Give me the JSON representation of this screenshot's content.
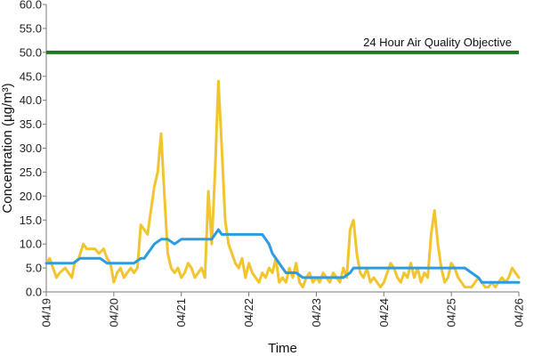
{
  "chart_data": {
    "type": "line",
    "xlabel": "Time",
    "ylabel": "Concentration (µg/m³)",
    "ylim": [
      0,
      60
    ],
    "ytick_labels": [
      "0.0",
      "5.0",
      "10.0",
      "15.0",
      "20.0",
      "25.0",
      "30.0",
      "35.0",
      "40.0",
      "45.0",
      "50.0",
      "55.0",
      "60.0"
    ],
    "ytick_values": [
      0,
      5,
      10,
      15,
      20,
      25,
      30,
      35,
      40,
      45,
      50,
      55,
      60
    ],
    "xlim": [
      0,
      7
    ],
    "xtick_labels": [
      "04/19",
      "04/20",
      "04/21",
      "04/22",
      "04/23",
      "04/24",
      "04/25",
      "04/26"
    ],
    "xtick_values": [
      0,
      1,
      2,
      3,
      4,
      5,
      6,
      7
    ],
    "grid": false,
    "reference_line": {
      "label": "24 Hour Air Quality Objective",
      "value": 50,
      "color": "#1a7a1a"
    },
    "series": [
      {
        "color": "#f2c52e",
        "x": [
          0.0,
          0.05,
          0.1,
          0.15,
          0.2,
          0.28,
          0.33,
          0.38,
          0.42,
          0.48,
          0.55,
          0.6,
          0.65,
          0.72,
          0.78,
          0.85,
          0.9,
          0.95,
          1.0,
          1.05,
          1.1,
          1.15,
          1.2,
          1.25,
          1.3,
          1.35,
          1.4,
          1.45,
          1.5,
          1.55,
          1.6,
          1.65,
          1.7,
          1.75,
          1.8,
          1.85,
          1.9,
          1.95,
          2.0,
          2.05,
          2.1,
          2.15,
          2.2,
          2.25,
          2.3,
          2.35,
          2.4,
          2.45,
          2.5,
          2.55,
          2.6,
          2.65,
          2.7,
          2.75,
          2.8,
          2.85,
          2.9,
          2.95,
          3.0,
          3.05,
          3.1,
          3.15,
          3.2,
          3.25,
          3.3,
          3.35,
          3.4,
          3.45,
          3.5,
          3.55,
          3.6,
          3.65,
          3.7,
          3.75,
          3.8,
          3.85,
          3.9,
          3.95,
          4.0,
          4.05,
          4.1,
          4.15,
          4.2,
          4.25,
          4.3,
          4.35,
          4.4,
          4.45,
          4.5,
          4.55,
          4.6,
          4.65,
          4.7,
          4.75,
          4.8,
          4.85,
          4.9,
          4.95,
          5.0,
          5.05,
          5.1,
          5.15,
          5.2,
          5.25,
          5.3,
          5.35,
          5.4,
          5.45,
          5.5,
          5.55,
          5.6,
          5.65,
          5.7,
          5.75,
          5.8,
          5.85,
          5.9,
          5.95,
          6.0,
          6.05,
          6.1,
          6.15,
          6.2,
          6.25,
          6.3,
          6.35,
          6.4,
          6.45,
          6.5,
          6.55,
          6.6,
          6.65,
          6.7,
          6.75,
          6.8,
          6.85,
          6.9,
          6.95,
          7.0
        ],
        "y": [
          6,
          7,
          5,
          3,
          4,
          5,
          4,
          3,
          6,
          7,
          10,
          9,
          9,
          9,
          8,
          9,
          7,
          6,
          2,
          4,
          5,
          3,
          4,
          5,
          4,
          5,
          14,
          13,
          12,
          17,
          22,
          25,
          33,
          20,
          8,
          5,
          4,
          5,
          3,
          4,
          6,
          5,
          3,
          4,
          5,
          3,
          21,
          10,
          25,
          44,
          30,
          15,
          10,
          8,
          6,
          5,
          7,
          3,
          6,
          4,
          3,
          2,
          4,
          3,
          5,
          4,
          7,
          2,
          3,
          2,
          5,
          3,
          6,
          2,
          1,
          3,
          4,
          2,
          3,
          2,
          4,
          3,
          2,
          4,
          3,
          2,
          5,
          3,
          13,
          15,
          8,
          4,
          3,
          5,
          2,
          3,
          2,
          1,
          2,
          4,
          6,
          5,
          3,
          2,
          4,
          3,
          6,
          3,
          5,
          2,
          4,
          3,
          12,
          17,
          10,
          5,
          2,
          3,
          6,
          5,
          3,
          2,
          1,
          1,
          1,
          2,
          3,
          2,
          1,
          1,
          2,
          1,
          2,
          3,
          2,
          3,
          5,
          4,
          3
        ]
      },
      {
        "color": "#2b9ce0",
        "x": [
          0.0,
          0.05,
          0.1,
          0.2,
          0.3,
          0.4,
          0.5,
          0.55,
          0.6,
          0.7,
          0.8,
          0.9,
          1.0,
          1.05,
          1.1,
          1.2,
          1.3,
          1.4,
          1.45,
          1.5,
          1.55,
          1.6,
          1.7,
          1.75,
          1.8,
          1.9,
          2.0,
          2.1,
          2.2,
          2.3,
          2.4,
          2.45,
          2.5,
          2.55,
          2.6,
          2.7,
          2.8,
          2.9,
          3.0,
          3.1,
          3.2,
          3.3,
          3.35,
          3.4,
          3.45,
          3.5,
          3.55,
          3.6,
          3.7,
          3.8,
          3.9,
          4.0,
          4.1,
          4.2,
          4.3,
          4.4,
          4.5,
          4.55,
          4.6,
          4.7,
          4.8,
          4.9,
          5.0,
          5.1,
          5.2,
          5.3,
          5.4,
          5.5,
          5.6,
          5.7,
          5.8,
          5.9,
          6.0,
          6.1,
          6.2,
          6.3,
          6.4,
          6.45,
          6.5,
          6.6,
          6.7,
          6.8,
          6.9,
          7.0
        ],
        "y": [
          6,
          6,
          6,
          6,
          6,
          6,
          7,
          7,
          7,
          7,
          7,
          6,
          6,
          6,
          6,
          6,
          6,
          7,
          7,
          8,
          9,
          10,
          11,
          11,
          11,
          10,
          11,
          11,
          11,
          11,
          11,
          11,
          12,
          13,
          12,
          12,
          12,
          12,
          12,
          12,
          12,
          10,
          8,
          7,
          6,
          5,
          4,
          4,
          4,
          3,
          3,
          3,
          3,
          3,
          3,
          3,
          4,
          5,
          5,
          5,
          5,
          5,
          5,
          5,
          5,
          5,
          5,
          5,
          5,
          5,
          5,
          5,
          5,
          5,
          5,
          4,
          3,
          2,
          2,
          2,
          2,
          2,
          2,
          2
        ]
      }
    ]
  }
}
